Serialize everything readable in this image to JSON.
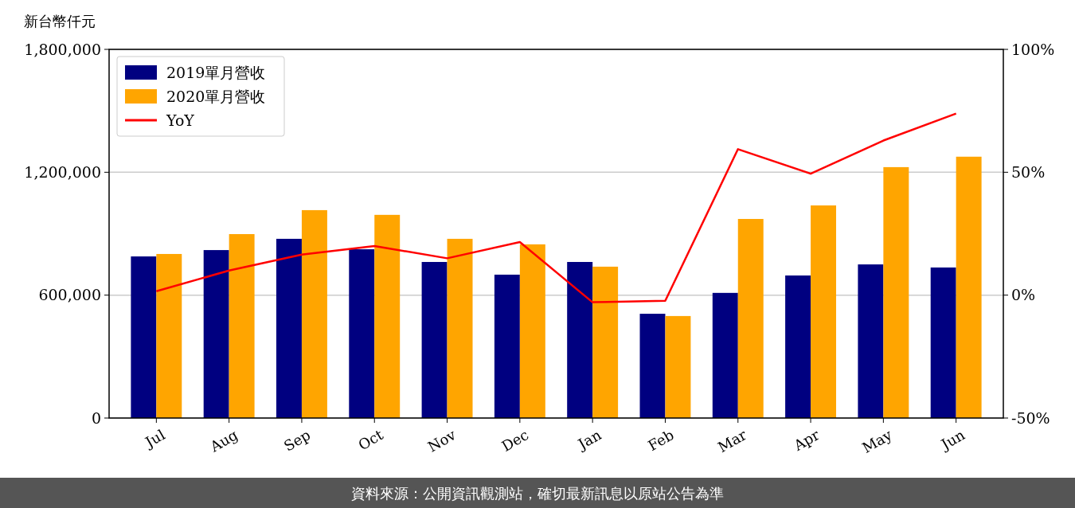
{
  "chart_data": {
    "type": "bar",
    "ylabel": "新台幣仟元",
    "categories": [
      "Jul",
      "Aug",
      "Sep",
      "Oct",
      "Nov",
      "Dec",
      "Jan",
      "Feb",
      "Mar",
      "Apr",
      "May",
      "Jun"
    ],
    "series": [
      {
        "name": "2019單月營收",
        "color": "#000080",
        "values": [
          789000,
          820000,
          875000,
          824000,
          762000,
          700000,
          762000,
          509000,
          611000,
          696000,
          750000,
          735000
        ]
      },
      {
        "name": "2020單月營收",
        "color": "#ffa500",
        "values": [
          801000,
          898000,
          1015000,
          992000,
          875000,
          848000,
          739000,
          498000,
          972000,
          1038000,
          1225000,
          1276000
        ]
      },
      {
        "name": "YoY",
        "type": "line",
        "axis": "y2",
        "color": "#ff0000",
        "values": [
          1.6,
          10,
          16.5,
          20,
          15,
          21.6,
          -2.9,
          -2.3,
          59.4,
          49.4,
          62.9,
          73.9
        ]
      }
    ],
    "ylim": [
      0,
      1800000
    ],
    "yticks": [
      {
        "value": 0,
        "label": "0"
      },
      {
        "value": 600000,
        "label": "600,000"
      },
      {
        "value": 1200000,
        "label": "1,200,000"
      },
      {
        "value": 1800000,
        "label": "1,800,000"
      }
    ],
    "y2lim": [
      -50,
      100
    ],
    "y2ticks": [
      {
        "value": -50,
        "label": "-50%"
      },
      {
        "value": 0,
        "label": "0%"
      },
      {
        "value": 50,
        "label": "50%"
      },
      {
        "value": 100,
        "label": "100%"
      }
    ],
    "grid": "y",
    "legend": "top left",
    "annotations": [
      "資料來源：公開資訊觀測站，確切最新訊息以原站公告為準"
    ]
  }
}
